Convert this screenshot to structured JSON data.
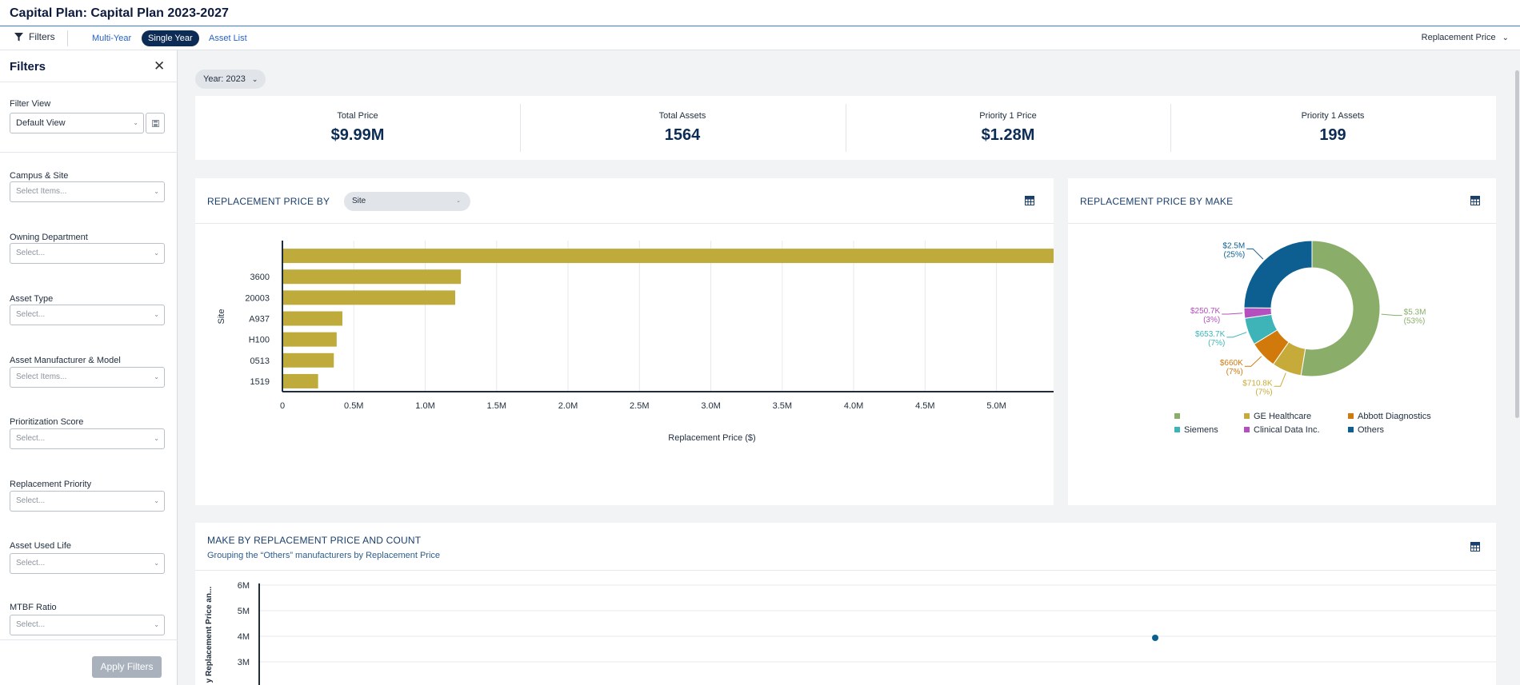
{
  "app": {
    "title": "Capital Plan: Capital Plan 2023-2027"
  },
  "toolbar": {
    "filters_label": "Filters",
    "tabs": [
      {
        "label": "Multi-Year",
        "active": false
      },
      {
        "label": "Single Year",
        "active": true
      },
      {
        "label": "Asset List",
        "active": false
      }
    ],
    "measure_label": "Replacement Price"
  },
  "sidebar": {
    "title": "Filters",
    "filter_view": {
      "label": "Filter View",
      "value": "Default View"
    },
    "fields": [
      {
        "label": "Campus & Site",
        "placeholder": "Select Items..."
      },
      {
        "label": "Owning Department",
        "placeholder": "Select..."
      },
      {
        "label": "Asset Type",
        "placeholder": "Select..."
      },
      {
        "label": "Asset Manufacturer & Model",
        "placeholder": "Select Items..."
      },
      {
        "label": "Prioritization Score",
        "placeholder": "Select..."
      },
      {
        "label": "Replacement Priority",
        "placeholder": "Select..."
      },
      {
        "label": "Asset Used Life",
        "placeholder": "Select..."
      },
      {
        "label": "MTBF Ratio",
        "placeholder": "Select..."
      }
    ],
    "apply_label": "Apply Filters"
  },
  "year_selector": {
    "label": "Year: 2023"
  },
  "kpis": [
    {
      "label": "Total Price",
      "value": "$9.99M"
    },
    {
      "label": "Total Assets",
      "value": "1564"
    },
    {
      "label": "Priority 1 Price",
      "value": "$1.28M"
    },
    {
      "label": "Priority 1 Assets",
      "value": "199"
    }
  ],
  "site_panel": {
    "title": "REPLACEMENT PRICE BY",
    "group_by": "Site"
  },
  "make_panel": {
    "title": "REPLACEMENT PRICE BY MAKE"
  },
  "scatter_panel": {
    "title": "MAKE BY REPLACEMENT PRICE AND COUNT",
    "subtitle": "Grouping the “Others” manufacturers by Replacement Price"
  },
  "colors": {
    "accent": "#0d2c55",
    "bar": "#bfab3c",
    "grid_icon": "#1a3f6b"
  },
  "chart_data": [
    {
      "type": "bar",
      "orientation": "horizontal",
      "categories": [
        "",
        "3600",
        "20003",
        "A937",
        "H100",
        "0513",
        "1519"
      ],
      "values": [
        5400000,
        1250000,
        1210000,
        420000,
        380000,
        360000,
        250000
      ],
      "xlabel": "Replacement Price ($)",
      "ylabel": "Site",
      "xlim": [
        0,
        5400000
      ],
      "xticks": [
        {
          "v": 0,
          "label": "0"
        },
        {
          "v": 500000,
          "label": "0.5M"
        },
        {
          "v": 1000000,
          "label": "1.0M"
        },
        {
          "v": 1500000,
          "label": "1.5M"
        },
        {
          "v": 2000000,
          "label": "2.0M"
        },
        {
          "v": 2500000,
          "label": "2.5M"
        },
        {
          "v": 3000000,
          "label": "3.0M"
        },
        {
          "v": 3500000,
          "label": "3.5M"
        },
        {
          "v": 4000000,
          "label": "4.0M"
        },
        {
          "v": 4500000,
          "label": "4.5M"
        },
        {
          "v": 5000000,
          "label": "5.0M"
        }
      ],
      "grid": true,
      "color": "#bfab3c"
    },
    {
      "type": "pie",
      "donut": true,
      "slices": [
        {
          "name": "",
          "value": 5300000,
          "value_label": "$5.3M",
          "pct_label": "(53%)",
          "color": "#8aae6a"
        },
        {
          "name": "GE Healthcare",
          "value": 710800,
          "value_label": "$710.8K",
          "pct_label": "(7%)",
          "color": "#c7ab3a"
        },
        {
          "name": "Abbott Diagnostics",
          "value": 660000,
          "value_label": "$660K",
          "pct_label": "(7%)",
          "color": "#d17a0b"
        },
        {
          "name": "Siemens",
          "value": 653700,
          "value_label": "$653.7K",
          "pct_label": "(7%)",
          "color": "#3fb4b8"
        },
        {
          "name": "Clinical Data Inc.",
          "value": 250700,
          "value_label": "$250.7K",
          "pct_label": "(3%)",
          "color": "#b44fbf"
        },
        {
          "name": "Others",
          "value": 2500000,
          "value_label": "$2.5M",
          "pct_label": "(25%)",
          "color": "#0d5f92"
        }
      ],
      "legend_position": "bottom"
    },
    {
      "type": "scatter",
      "ylabel": "y Replacement Price an...",
      "ylim": [
        0,
        6000000
      ],
      "yticks": [
        {
          "v": 3000000,
          "label": "3M"
        },
        {
          "v": 4000000,
          "label": "4M"
        },
        {
          "v": 5000000,
          "label": "5M"
        },
        {
          "v": 6000000,
          "label": "6M"
        }
      ],
      "points": [
        {
          "y": 4000000,
          "color": "#0d5f92"
        }
      ]
    }
  ]
}
